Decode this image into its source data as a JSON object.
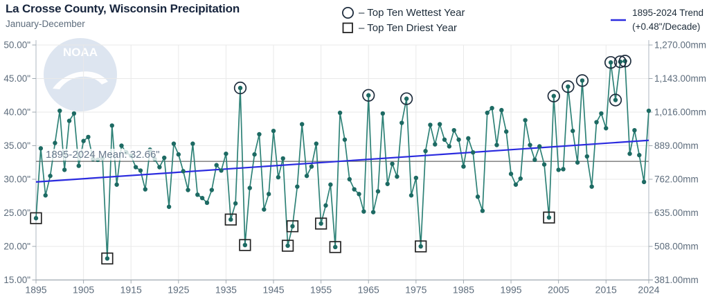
{
  "header": {
    "title": "La Crosse County, Wisconsin Precipitation",
    "subtitle": "January-December"
  },
  "legend": {
    "wettest": "– Top Ten Wettest Year",
    "driest": "– Top Ten Driest Year",
    "trend_line1": "1895-2024 Trend",
    "trend_line2": "(+0.48\"/Decade)"
  },
  "watermark": {
    "text": "NOAA"
  },
  "colors": {
    "line": "#2d8176",
    "dot": "#1d6a63",
    "trend": "#2b2bdf",
    "mean_line": "#8a8a8a",
    "grid": "#e9e9e9",
    "axis": "#bcc3ca",
    "axis_bottom": "#9fa8b0",
    "title": "#17253d",
    "text": "#5d6c7c",
    "legend_text": "#1d2c3a",
    "marker_outline": "#1f2d3d",
    "marker_square": "#232323",
    "watermark_bg": "#dde5f0",
    "watermark_fg": "#ffffff"
  },
  "chart_data": {
    "type": "line",
    "title": "La Crosse County, Wisconsin Precipitation",
    "subtitle": "January-December",
    "series_name": "Annual precipitation (inches)",
    "x_range": [
      1895,
      2024
    ],
    "values": [
      24.2,
      34.6,
      27.6,
      30.5,
      35.4,
      40.2,
      31.4,
      38.7,
      39.8,
      32.0,
      35.7,
      36.3,
      33.0,
      32.9,
      33.1,
      18.2,
      38.0,
      29.2,
      35.0,
      34.0,
      33.5,
      31.8,
      31.3,
      28.5,
      34.4,
      33.0,
      31.8,
      33.2,
      25.9,
      35.3,
      33.7,
      31.2,
      28.4,
      35.3,
      27.7,
      27.2,
      26.5,
      28.4,
      32.1,
      31.3,
      33.8,
      24.0,
      26.4,
      43.6,
      20.2,
      28.7,
      33.7,
      36.7,
      25.5,
      27.8,
      37.2,
      30.3,
      33.1,
      20.1,
      23.0,
      28.9,
      38.2,
      30.5,
      31.9,
      35.3,
      23.4,
      26.1,
      29.2,
      19.9,
      39.9,
      35.9,
      30.0,
      28.5,
      27.8,
      25.2,
      42.5,
      25.1,
      28.2,
      39.8,
      29.3,
      32.3,
      30.4,
      38.4,
      42.0,
      27.6,
      30.2,
      20.0,
      34.2,
      38.1,
      35.2,
      38.2,
      35.9,
      34.9,
      37.3,
      35.9,
      31.9,
      36.1,
      34.0,
      27.4,
      25.3,
      39.9,
      40.6,
      35.1,
      40.3,
      37.1,
      30.8,
      29.2,
      30.1,
      38.8,
      35.1,
      32.9,
      34.9,
      32.2,
      24.3,
      42.4,
      31.4,
      31.5,
      43.8,
      37.2,
      32.5,
      44.7,
      33.4,
      28.9,
      38.5,
      39.8,
      37.6,
      47.4,
      41.8,
      47.5,
      47.6,
      33.8,
      37.3,
      33.6,
      29.6,
      40.2
    ],
    "top_ten_wettest_years": [
      1938,
      1965,
      1973,
      2004,
      2007,
      2010,
      2016,
      2017,
      2018,
      2019
    ],
    "top_ten_driest_years": [
      1895,
      1910,
      1936,
      1939,
      1948,
      1949,
      1955,
      1958,
      1976,
      2003
    ],
    "x_axis": {
      "tick_values": [
        1895,
        1905,
        1915,
        1925,
        1935,
        1945,
        1955,
        1965,
        1975,
        1985,
        1995,
        2005,
        2015,
        2024
      ],
      "tick_labels": [
        "1895",
        "1905",
        "1915",
        "1925",
        "1935",
        "1945",
        "1955",
        "1965",
        "1975",
        "1985",
        "1995",
        "2005",
        "2015",
        "2024"
      ]
    },
    "y_axis_left": {
      "unit": "inches",
      "min": 15,
      "max": 50,
      "tick_values": [
        50,
        45,
        40,
        35,
        30,
        25,
        20,
        15
      ],
      "tick_labels": [
        "50.00\"",
        "45.00\"",
        "40.00\"",
        "35.00\"",
        "30.00\"",
        "25.00\"",
        "20.00\"",
        "15.00\""
      ]
    },
    "y_axis_right": {
      "unit": "mm",
      "min": 381,
      "max": 1270,
      "tick_labels": [
        "1,270.00mm",
        "1,143.00mm",
        "1,016.00mm",
        "889.00mm",
        "762.00mm",
        "635.00mm",
        "508.00mm",
        "381.00mm"
      ]
    },
    "mean": {
      "value": 32.66,
      "label": "1895-2024 Mean: 32.66\""
    },
    "trend": {
      "per_decade_inches": 0.48,
      "start_value": 29.6,
      "end_value": 35.8
    },
    "grid": true,
    "legend_position": "top"
  }
}
